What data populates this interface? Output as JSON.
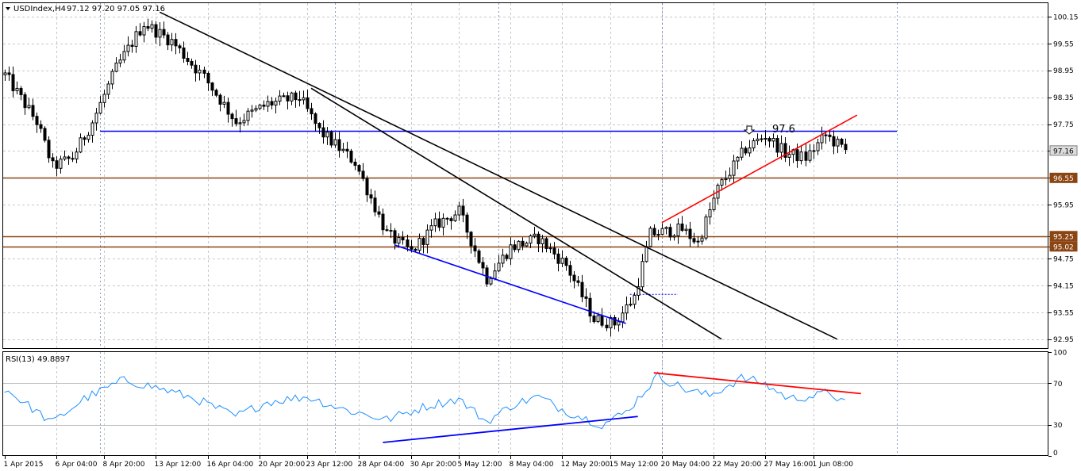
{
  "header": {
    "symbol": "USDIndex,H4",
    "ohlc": "97.12 97.20 97.05 97.16"
  },
  "rsi_header": {
    "label": "RSI(13) 49.8897"
  },
  "annotation": {
    "level_label": "97.6"
  },
  "colors": {
    "background": "#ffffff",
    "grid": "#c8c8c8",
    "candle_up": "#ffffff",
    "candle_down": "#000000",
    "blue_line": "#0000ff",
    "brown_line": "#8b4513",
    "red_line": "#ff0000",
    "black_line": "#000000",
    "rsi_line": "#1e90ff",
    "price_box_current": "#dcdcdc",
    "price_box_level": "#8b4513"
  },
  "chart_data": [
    {
      "type": "candlestick",
      "name": "USDIndex H4",
      "ylim": [
        92.75,
        100.45
      ],
      "y_ticks": [
        "100.15",
        "99.55",
        "98.95",
        "98.35",
        "97.75",
        "97.16",
        "96.55",
        "95.95",
        "95.25",
        "95.02",
        "94.75",
        "94.15",
        "93.55",
        "92.95"
      ],
      "x_ticks": [
        "1 Apr 2015",
        "6 Apr 04:00",
        "8 Apr 20:00",
        "13 Apr 12:00",
        "16 Apr 04:00",
        "20 Apr 20:00",
        "23 Apr 12:00",
        "28 Apr 04:00",
        "30 Apr 20:00",
        "5 May 12:00",
        "8 May 04:00",
        "12 May 20:00",
        "15 May 12:00",
        "20 May 04:00",
        "22 May 20:00",
        "27 May 16:00",
        "1 Jun 08:00"
      ],
      "current_price": 97.16,
      "anchors": [
        {
          "i": 0,
          "p": 98.85
        },
        {
          "i": 8,
          "p": 97.8
        },
        {
          "i": 12,
          "p": 96.8
        },
        {
          "i": 17,
          "p": 97.0
        },
        {
          "i": 22,
          "p": 97.8
        },
        {
          "i": 28,
          "p": 99.0
        },
        {
          "i": 35,
          "p": 100.0
        },
        {
          "i": 42,
          "p": 99.6
        },
        {
          "i": 50,
          "p": 98.8
        },
        {
          "i": 58,
          "p": 97.8
        },
        {
          "i": 66,
          "p": 98.2
        },
        {
          "i": 74,
          "p": 98.35
        },
        {
          "i": 79,
          "p": 97.6
        },
        {
          "i": 88,
          "p": 96.9
        },
        {
          "i": 96,
          "p": 95.3
        },
        {
          "i": 102,
          "p": 94.9
        },
        {
          "i": 108,
          "p": 95.5
        },
        {
          "i": 114,
          "p": 95.8
        },
        {
          "i": 121,
          "p": 94.3
        },
        {
          "i": 127,
          "p": 95.0
        },
        {
          "i": 134,
          "p": 95.2
        },
        {
          "i": 141,
          "p": 94.6
        },
        {
          "i": 148,
          "p": 93.4
        },
        {
          "i": 153,
          "p": 93.3
        },
        {
          "i": 158,
          "p": 93.9
        },
        {
          "i": 162,
          "p": 95.3
        },
        {
          "i": 170,
          "p": 95.4
        },
        {
          "i": 174,
          "p": 95.1
        },
        {
          "i": 179,
          "p": 96.3
        },
        {
          "i": 186,
          "p": 97.2
        },
        {
          "i": 191,
          "p": 97.5
        },
        {
          "i": 196,
          "p": 97.1
        },
        {
          "i": 201,
          "p": 97.0
        },
        {
          "i": 206,
          "p": 97.5
        },
        {
          "i": 211,
          "p": 97.16
        }
      ],
      "horizontal_levels": [
        {
          "price": 97.6,
          "color": "blue",
          "labeled": false
        },
        {
          "price": 96.55,
          "color": "brown",
          "labeled": true
        },
        {
          "price": 95.25,
          "color": "brown",
          "labeled": true
        },
        {
          "price": 95.02,
          "color": "brown",
          "labeled": true
        }
      ],
      "trend_lines": [
        {
          "color": "black",
          "from": {
            "i": 39,
            "p": 100.25
          },
          "to": {
            "i": 209,
            "p": 92.95
          }
        },
        {
          "color": "black",
          "from": {
            "i": 77,
            "p": 98.55
          },
          "to": {
            "i": 180,
            "p": 92.95
          }
        },
        {
          "color": "blue",
          "from": {
            "i": 98,
            "p": 95.05
          },
          "to": {
            "i": 156,
            "p": 93.3
          }
        },
        {
          "color": "red",
          "from": {
            "i": 165,
            "p": 95.55
          },
          "to": {
            "i": 214,
            "p": 97.95
          }
        }
      ]
    },
    {
      "type": "line",
      "name": "RSI(13)",
      "value": 49.8897,
      "ylim": [
        0,
        100
      ],
      "levels": [
        70,
        30
      ],
      "y_ticks": [
        "100",
        "70",
        "30",
        "0"
      ],
      "anchors": [
        {
          "i": 0,
          "v": 65
        },
        {
          "i": 12,
          "v": 32
        },
        {
          "i": 20,
          "v": 55
        },
        {
          "i": 30,
          "v": 73
        },
        {
          "i": 38,
          "v": 66
        },
        {
          "i": 48,
          "v": 55
        },
        {
          "i": 58,
          "v": 38
        },
        {
          "i": 66,
          "v": 52
        },
        {
          "i": 76,
          "v": 57
        },
        {
          "i": 85,
          "v": 45
        },
        {
          "i": 96,
          "v": 35
        },
        {
          "i": 106,
          "v": 48
        },
        {
          "i": 114,
          "v": 55
        },
        {
          "i": 121,
          "v": 33
        },
        {
          "i": 128,
          "v": 50
        },
        {
          "i": 134,
          "v": 57
        },
        {
          "i": 141,
          "v": 43
        },
        {
          "i": 150,
          "v": 30
        },
        {
          "i": 156,
          "v": 42
        },
        {
          "i": 164,
          "v": 77
        },
        {
          "i": 171,
          "v": 64
        },
        {
          "i": 177,
          "v": 58
        },
        {
          "i": 185,
          "v": 75
        },
        {
          "i": 190,
          "v": 71
        },
        {
          "i": 197,
          "v": 55
        },
        {
          "i": 204,
          "v": 58
        },
        {
          "i": 207,
          "v": 62
        },
        {
          "i": 211,
          "v": 50
        }
      ],
      "trend_lines": [
        {
          "color": "blue",
          "from": {
            "i": 95,
            "v": 13
          },
          "to": {
            "i": 159,
            "v": 38
          }
        },
        {
          "color": "red",
          "from": {
            "i": 163,
            "v": 80
          },
          "to": {
            "i": 215,
            "v": 60
          }
        }
      ]
    }
  ]
}
